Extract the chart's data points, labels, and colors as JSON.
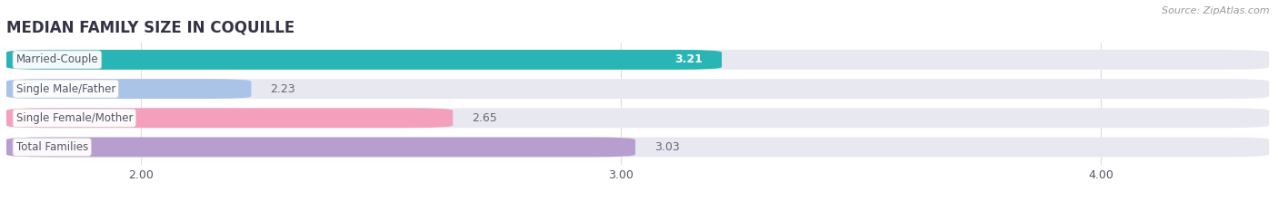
{
  "title": "MEDIAN FAMILY SIZE IN COQUILLE",
  "source": "Source: ZipAtlas.com",
  "categories": [
    "Married-Couple",
    "Single Male/Father",
    "Single Female/Mother",
    "Total Families"
  ],
  "values": [
    3.21,
    2.23,
    2.65,
    3.03
  ],
  "bar_colors": [
    "#29b5b5",
    "#aac4e8",
    "#f4a0bc",
    "#b89ece"
  ],
  "bar_bg_color": "#e8e8f0",
  "xmin": 1.72,
  "xmax": 4.35,
  "xticks": [
    2.0,
    3.0,
    4.0
  ],
  "xtick_labels": [
    "2.00",
    "3.00",
    "4.00"
  ],
  "label_color": "#555566",
  "title_color": "#333344",
  "source_color": "#999999",
  "value_label_inside_color": "#ffffff",
  "value_label_outside_color": "#666677",
  "background_color": "#ffffff",
  "bar_height": 0.68,
  "grid_color": "#dddddd"
}
